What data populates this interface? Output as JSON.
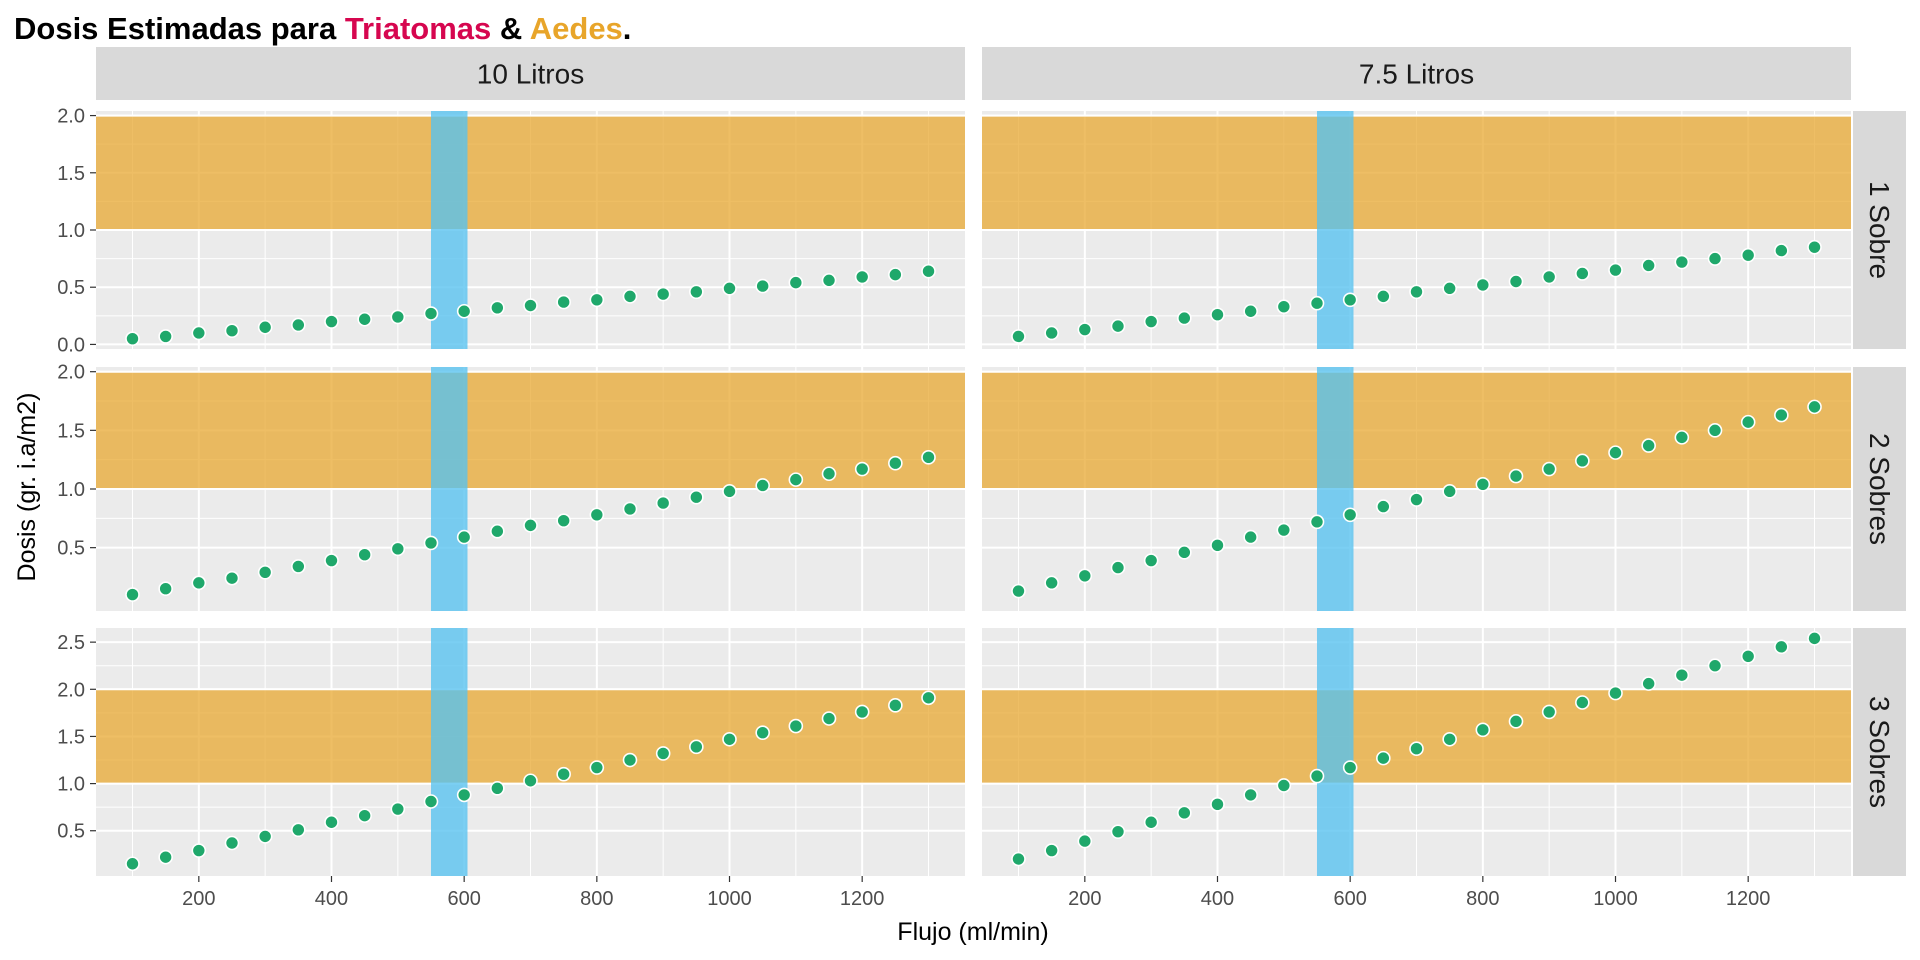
{
  "title": {
    "parts": [
      {
        "text": "Dosis Estimadas para ",
        "color": "#000000"
      },
      {
        "text": "Triatomas",
        "color": "#D6064F"
      },
      {
        "text": " & ",
        "color": "#000000"
      },
      {
        "text": "Aedes",
        "color": "#E8A52A"
      },
      {
        "text": ".",
        "color": "#000000"
      }
    ]
  },
  "chart_data": {
    "type": "scatter",
    "xlabel": "Flujo (ml/min)",
    "ylabel": "Dosis (gr. i.a/m2)",
    "xlim": [
      45,
      1355
    ],
    "x_ticks": [
      200,
      400,
      600,
      800,
      1000,
      1200
    ],
    "grid": true,
    "columns": [
      "10 Litros",
      "7.5 Litros"
    ],
    "rows": [
      {
        "label": "1 Sobre",
        "ylim": [
          -0.04,
          2.04
        ],
        "y_ticks": [
          0.0,
          0.5,
          1.0,
          1.5,
          2.0
        ],
        "y_tick_labels": [
          "0.0",
          "0.5",
          "1.0",
          "1.5",
          "2.0"
        ]
      },
      {
        "label": "2 Sobres",
        "ylim": [
          -0.04,
          2.04
        ],
        "y_ticks": [
          0.5,
          1.0,
          1.5,
          2.0
        ],
        "y_tick_labels": [
          "0.5",
          "1.0",
          "1.5",
          "2.0"
        ]
      },
      {
        "label": "3 Sobres",
        "ylim": [
          0.02,
          2.65
        ],
        "y_ticks": [
          0.5,
          1.0,
          1.5,
          2.0,
          2.5
        ],
        "y_tick_labels": [
          "0.5",
          "1.0",
          "1.5",
          "2.0",
          "2.5"
        ]
      }
    ],
    "target_band": {
      "ymin": 1.0,
      "ymax": 2.0,
      "color": "#E8A52A"
    },
    "flow_band": {
      "xmin": 550,
      "xmax": 605,
      "color": "#56C1F0"
    },
    "point_color": "#1FA86B",
    "x": [
      100,
      150,
      200,
      250,
      300,
      350,
      400,
      450,
      500,
      550,
      600,
      650,
      700,
      750,
      800,
      850,
      900,
      950,
      1000,
      1050,
      1100,
      1150,
      1200,
      1250,
      1300
    ],
    "series": [
      {
        "row": 0,
        "col": 0,
        "values": [
          0.05,
          0.07,
          0.1,
          0.12,
          0.15,
          0.17,
          0.2,
          0.22,
          0.24,
          0.27,
          0.29,
          0.32,
          0.34,
          0.37,
          0.39,
          0.42,
          0.44,
          0.46,
          0.49,
          0.51,
          0.54,
          0.56,
          0.59,
          0.61,
          0.64
        ]
      },
      {
        "row": 0,
        "col": 1,
        "values": [
          0.07,
          0.1,
          0.13,
          0.16,
          0.2,
          0.23,
          0.26,
          0.29,
          0.33,
          0.36,
          0.39,
          0.42,
          0.46,
          0.49,
          0.52,
          0.55,
          0.59,
          0.62,
          0.65,
          0.69,
          0.72,
          0.75,
          0.78,
          0.82,
          0.85
        ]
      },
      {
        "row": 1,
        "col": 0,
        "values": [
          0.1,
          0.15,
          0.2,
          0.24,
          0.29,
          0.34,
          0.39,
          0.44,
          0.49,
          0.54,
          0.59,
          0.64,
          0.69,
          0.73,
          0.78,
          0.83,
          0.88,
          0.93,
          0.98,
          1.03,
          1.08,
          1.13,
          1.17,
          1.22,
          1.27
        ]
      },
      {
        "row": 1,
        "col": 1,
        "values": [
          0.13,
          0.2,
          0.26,
          0.33,
          0.39,
          0.46,
          0.52,
          0.59,
          0.65,
          0.72,
          0.78,
          0.85,
          0.91,
          0.98,
          1.04,
          1.11,
          1.17,
          1.24,
          1.31,
          1.37,
          1.44,
          1.5,
          1.57,
          1.63,
          1.7
        ]
      },
      {
        "row": 2,
        "col": 0,
        "values": [
          0.15,
          0.22,
          0.29,
          0.37,
          0.44,
          0.51,
          0.59,
          0.66,
          0.73,
          0.81,
          0.88,
          0.95,
          1.03,
          1.1,
          1.17,
          1.25,
          1.32,
          1.39,
          1.47,
          1.54,
          1.61,
          1.69,
          1.76,
          1.83,
          1.91
        ]
      },
      {
        "row": 2,
        "col": 1,
        "values": [
          0.2,
          0.29,
          0.39,
          0.49,
          0.59,
          0.69,
          0.78,
          0.88,
          0.98,
          1.08,
          1.17,
          1.27,
          1.37,
          1.47,
          1.57,
          1.66,
          1.76,
          1.86,
          1.96,
          2.06,
          2.15,
          2.25,
          2.35,
          2.45,
          2.54
        ]
      }
    ]
  }
}
